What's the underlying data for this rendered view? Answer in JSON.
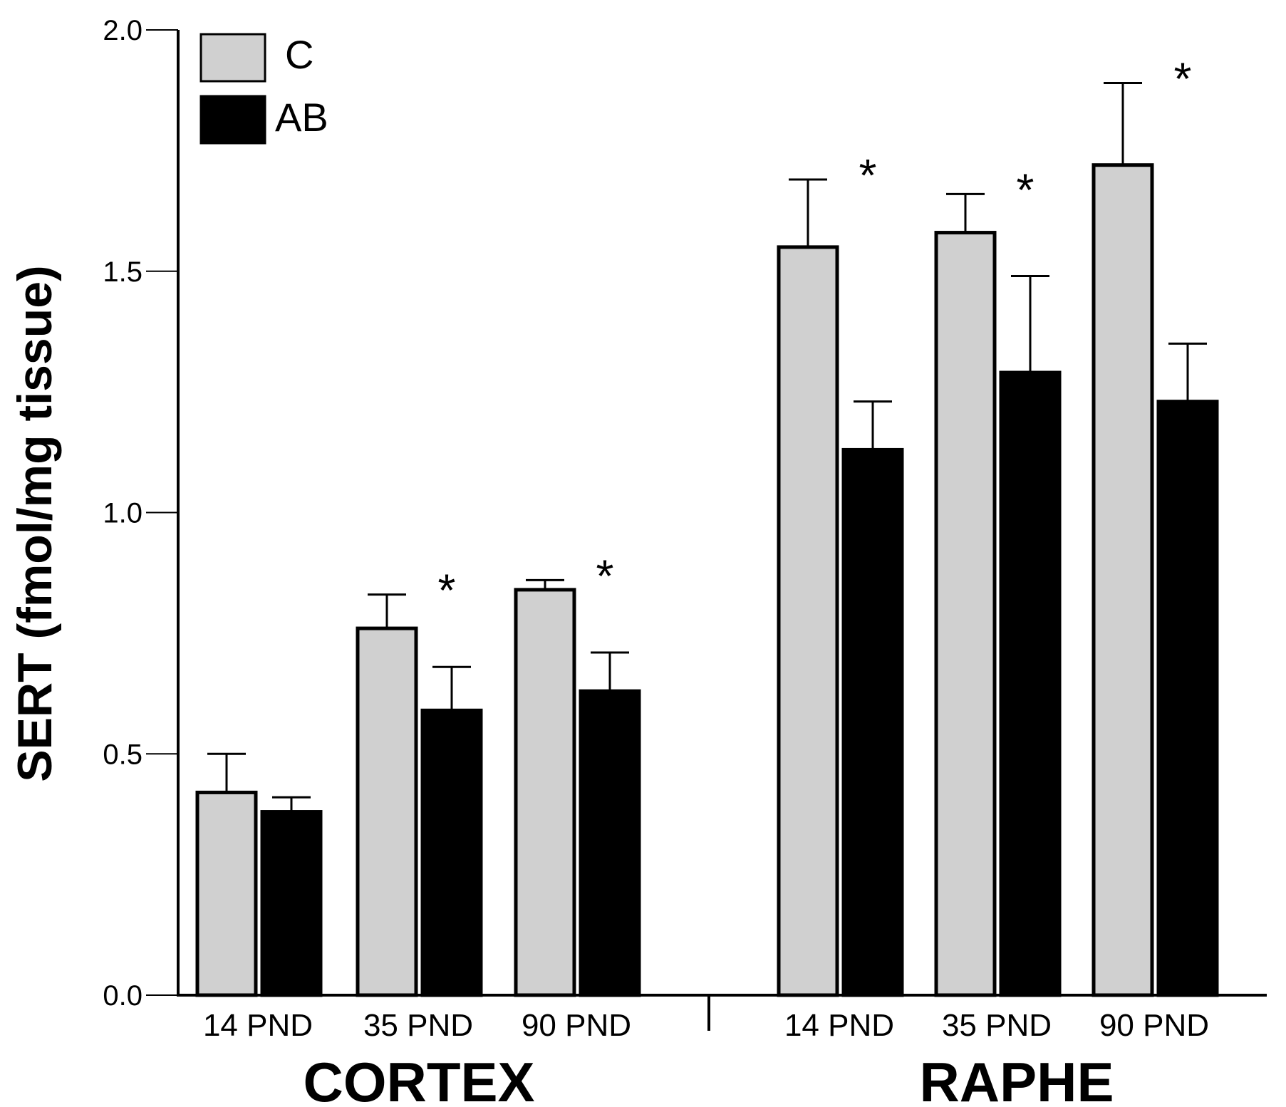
{
  "chart_data": {
    "type": "bar",
    "title": "",
    "xlabel": "",
    "ylabel": "SERT (fmol/mg tissue)",
    "ylim": [
      0,
      2.0
    ],
    "yticks": [
      "0.0",
      "0.5",
      "1.0",
      "1.5",
      "2.0"
    ],
    "grid": false,
    "legend_position": "top-left",
    "groups": [
      {
        "label": "CORTEX",
        "categories": [
          "14 PND",
          "35 PND",
          "90 PND"
        ],
        "series": [
          {
            "name": "C",
            "color": "#d0d0d0",
            "values": [
              0.42,
              0.76,
              0.84
            ],
            "errors": [
              0.08,
              0.07,
              0.02
            ]
          },
          {
            "name": "AB",
            "color": "#000000",
            "values": [
              0.38,
              0.59,
              0.63
            ],
            "errors": [
              0.03,
              0.09,
              0.08
            ]
          }
        ],
        "significant": [
          false,
          true,
          true
        ]
      },
      {
        "label": "RAPHE",
        "categories": [
          "14 PND",
          "35 PND",
          "90 PND"
        ],
        "series": [
          {
            "name": "C",
            "color": "#d0d0d0",
            "values": [
              1.55,
              1.58,
              1.72
            ],
            "errors": [
              0.14,
              0.08,
              0.17
            ]
          },
          {
            "name": "AB",
            "color": "#000000",
            "values": [
              1.13,
              1.29,
              1.23
            ],
            "errors": [
              0.1,
              0.2,
              0.12
            ]
          }
        ],
        "significant": [
          true,
          true,
          true
        ]
      }
    ],
    "significance_marker": "*"
  }
}
